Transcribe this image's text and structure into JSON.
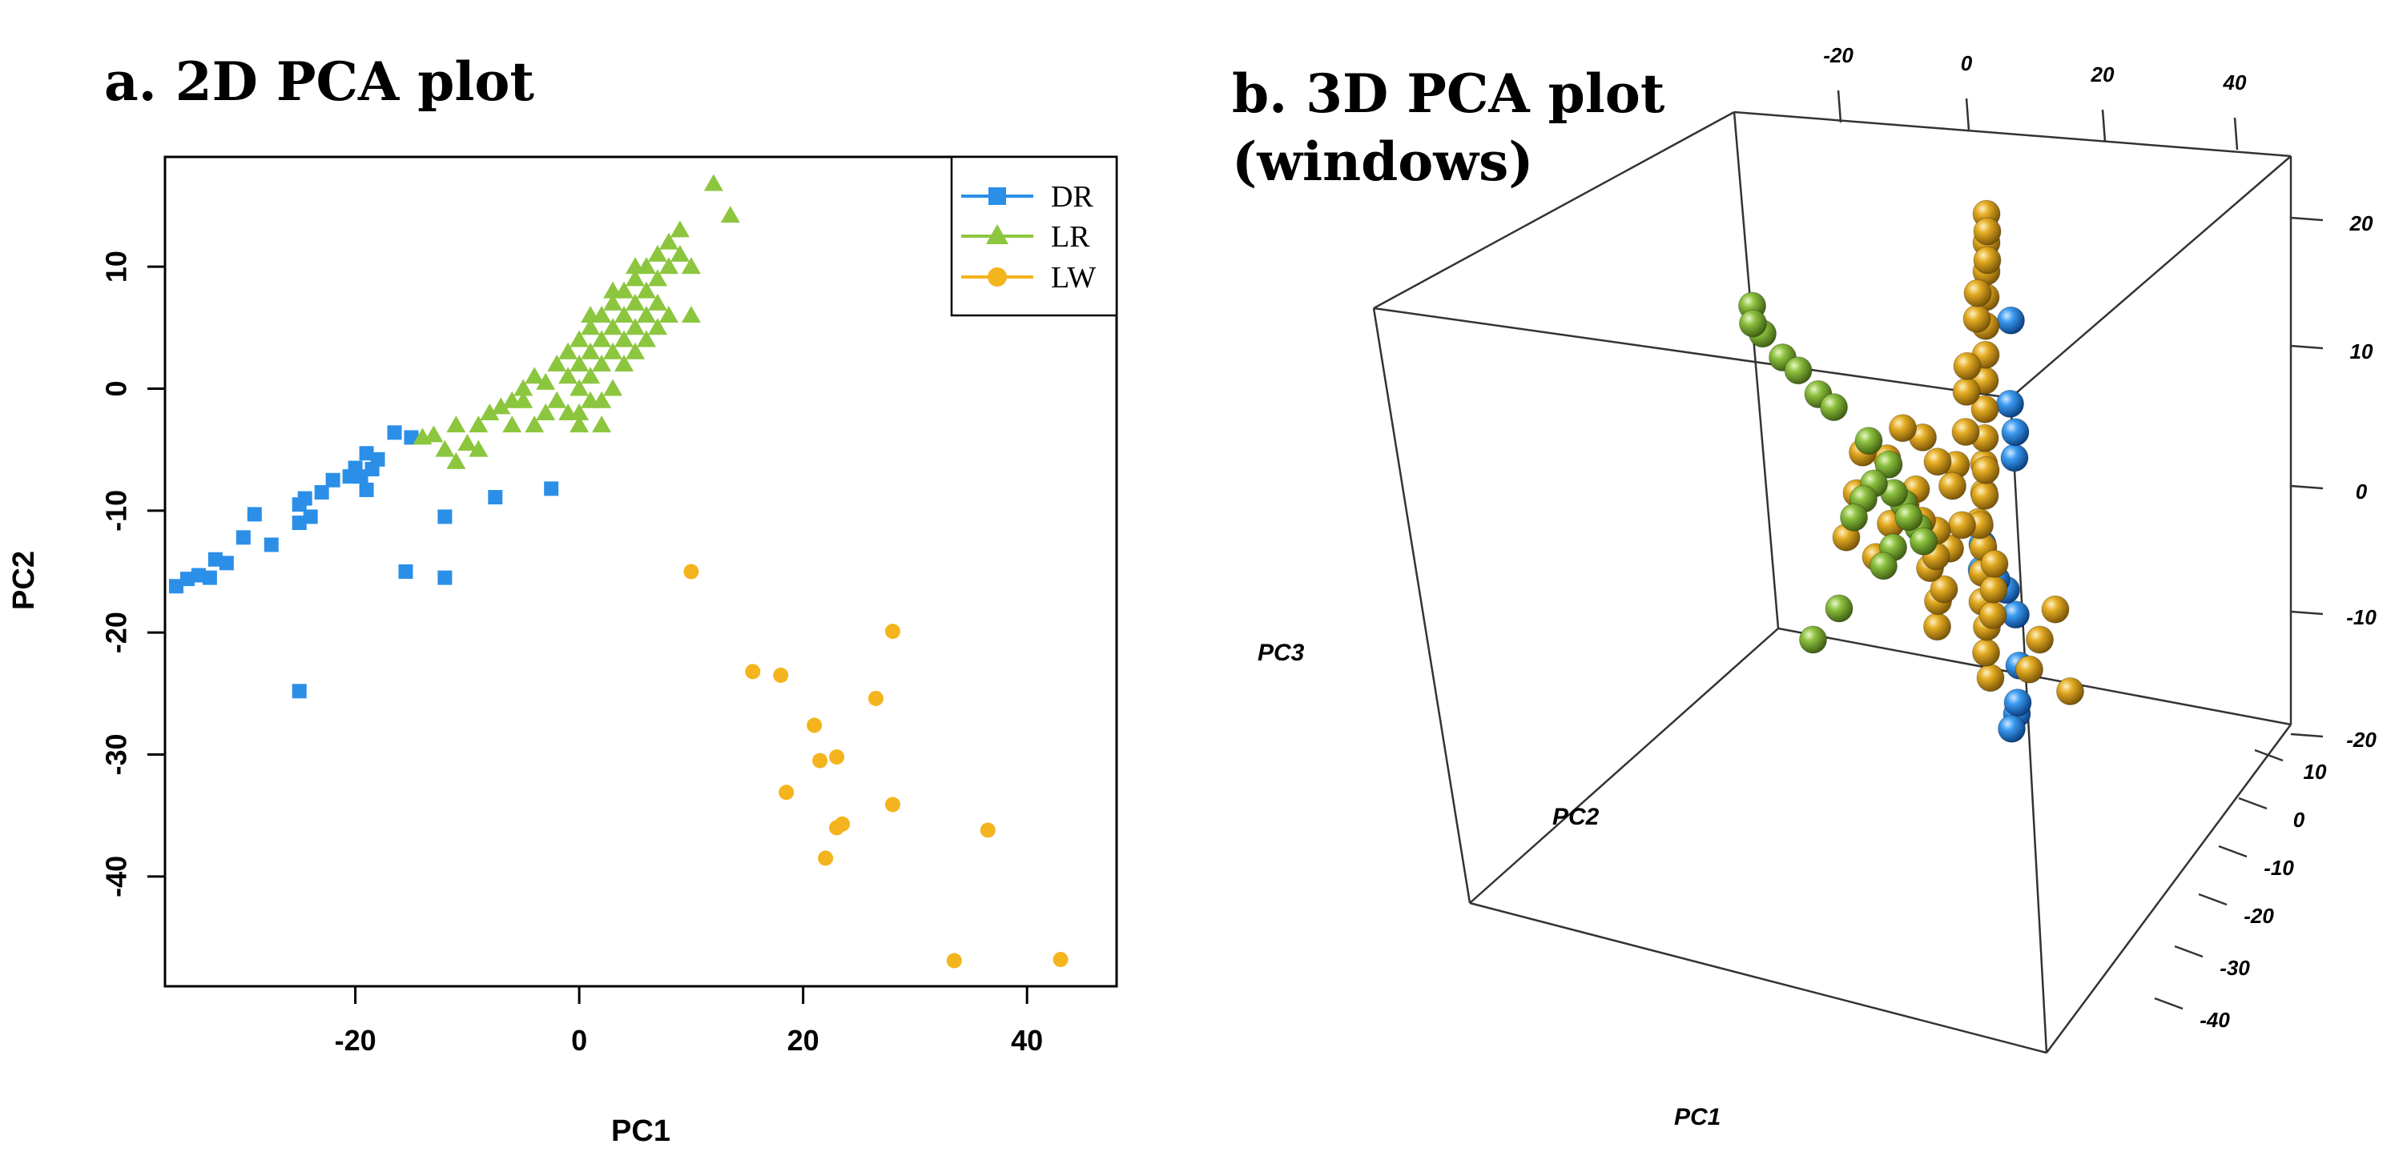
{
  "panel_a": {
    "title": "a. 2D PCA plot"
  },
  "panel_b": {
    "title_line1": "b. 3D PCA plot",
    "title_line2": "(windows)"
  },
  "colors": {
    "DR": "#2b8fe8",
    "LR": "#8cc63f",
    "LW": "#f4b41e",
    "DR_3d": "#2378c8",
    "LR_3d": "#7fb03a",
    "LW_3d": "#dba318"
  },
  "chart_data": [
    {
      "type": "scatter",
      "title": "a. 2D PCA plot",
      "xlabel": "PC1",
      "ylabel": "PC2",
      "xlim": [
        -37,
        48
      ],
      "ylim": [
        -49,
        19
      ],
      "xticks": [
        "-20",
        "0",
        "20",
        "40"
      ],
      "xtick_values": [
        -20,
        0,
        20,
        40
      ],
      "yticks": [
        "10",
        "0",
        "-10",
        "-20",
        "-30",
        "-40"
      ],
      "ytick_values": [
        10,
        0,
        -10,
        -20,
        -30,
        -40
      ],
      "legend": [
        "DR",
        "LR",
        "LW"
      ],
      "legend_position": "top-right",
      "series": [
        {
          "name": "DR",
          "marker": "square",
          "points": [
            [
              -36,
              -16.2
            ],
            [
              -35,
              -15.6
            ],
            [
              -34,
              -15.3
            ],
            [
              -33,
              -15.5
            ],
            [
              -32.5,
              -14
            ],
            [
              -31.5,
              -14.3
            ],
            [
              -30,
              -12.2
            ],
            [
              -29,
              -10.3
            ],
            [
              -27.5,
              -12.8
            ],
            [
              -25,
              -9.5
            ],
            [
              -24.5,
              -9
            ],
            [
              -25,
              -11
            ],
            [
              -24,
              -10.5
            ],
            [
              -23,
              -8.5
            ],
            [
              -22,
              -7.5
            ],
            [
              -20.5,
              -7.2
            ],
            [
              -20,
              -6.5
            ],
            [
              -19.5,
              -7.2
            ],
            [
              -19,
              -8.3
            ],
            [
              -19,
              -5.3
            ],
            [
              -18.5,
              -6.6
            ],
            [
              -18,
              -5.8
            ],
            [
              -16.5,
              -3.6
            ],
            [
              -15,
              -4
            ],
            [
              -12,
              -10.5
            ],
            [
              -15.5,
              -15
            ],
            [
              -12,
              -15.5
            ],
            [
              -7.5,
              -8.9
            ],
            [
              -2.5,
              -8.2
            ],
            [
              -25,
              -24.8
            ]
          ]
        },
        {
          "name": "LR",
          "marker": "triangle",
          "points": [
            [
              -14,
              -4
            ],
            [
              -13,
              -3.8
            ],
            [
              -12,
              -5
            ],
            [
              -11,
              -6
            ],
            [
              -10,
              -4.5
            ],
            [
              -9,
              -3
            ],
            [
              -8,
              -2
            ],
            [
              -7,
              -1.5
            ],
            [
              -6,
              -1
            ],
            [
              -5,
              0
            ],
            [
              -4,
              1
            ],
            [
              -3,
              0.5
            ],
            [
              -2,
              2
            ],
            [
              -1,
              3
            ],
            [
              -1,
              1
            ],
            [
              0,
              4
            ],
            [
              0,
              2
            ],
            [
              0,
              0
            ],
            [
              1,
              3
            ],
            [
              1,
              5
            ],
            [
              1,
              1
            ],
            [
              2,
              6
            ],
            [
              2,
              4
            ],
            [
              2,
              2
            ],
            [
              3,
              5
            ],
            [
              3,
              7
            ],
            [
              3,
              3
            ],
            [
              4,
              6
            ],
            [
              4,
              8
            ],
            [
              5,
              7
            ],
            [
              5,
              9
            ],
            [
              5,
              5
            ],
            [
              6,
              8
            ],
            [
              6,
              10
            ],
            [
              7,
              9
            ],
            [
              7,
              7
            ],
            [
              8,
              10
            ],
            [
              8,
              12
            ],
            [
              9,
              11
            ],
            [
              9,
              13
            ],
            [
              10,
              10
            ],
            [
              12,
              16.8
            ],
            [
              13.5,
              14.2
            ],
            [
              0,
              -2
            ],
            [
              -2,
              -1
            ],
            [
              1,
              -1
            ],
            [
              3,
              0
            ],
            [
              5,
              3
            ],
            [
              7,
              5
            ],
            [
              10,
              6
            ],
            [
              2,
              -3
            ],
            [
              -4,
              -3
            ],
            [
              -6,
              -3
            ],
            [
              -9,
              -5
            ],
            [
              -11,
              -3
            ],
            [
              4,
              2
            ],
            [
              6,
              4
            ],
            [
              8,
              6
            ],
            [
              0,
              -3
            ],
            [
              -1,
              -2
            ],
            [
              2,
              -1
            ],
            [
              -3,
              -2
            ],
            [
              4,
              4
            ],
            [
              6,
              6
            ],
            [
              -5,
              -1
            ],
            [
              1,
              6
            ],
            [
              3,
              8
            ],
            [
              5,
              10
            ],
            [
              7,
              11
            ]
          ]
        },
        {
          "name": "LW",
          "marker": "circle",
          "points": [
            [
              10,
              -15
            ],
            [
              15.5,
              -23.2
            ],
            [
              18,
              -23.5
            ],
            [
              28,
              -19.9
            ],
            [
              21,
              -27.6
            ],
            [
              26.5,
              -25.4
            ],
            [
              21.5,
              -30.5
            ],
            [
              23,
              -30.2
            ],
            [
              18.5,
              -33.1
            ],
            [
              23.5,
              -35.7
            ],
            [
              23,
              -36
            ],
            [
              28,
              -34.1
            ],
            [
              22,
              -38.5
            ],
            [
              36.5,
              -36.2
            ],
            [
              33.5,
              -46.9
            ],
            [
              43,
              -46.8
            ]
          ]
        }
      ]
    },
    {
      "type": "scatter",
      "title": "b. 3D PCA plot (windows)",
      "xlabel": "PC1",
      "ylabel": "PC2",
      "zlabel": "PC3",
      "top_ticks": [
        "-20",
        "0",
        "20",
        "40"
      ],
      "right_ticks": [
        "20",
        "10",
        "0",
        "-10",
        "-20"
      ],
      "bottom_ticks": [
        "10",
        "0",
        "-10",
        "-20",
        "-30",
        "-40"
      ],
      "series": [
        {
          "name": "DR",
          "points": [
            [
              2,
              -5,
              12
            ],
            [
              1,
              -6,
              6
            ],
            [
              2,
              -6,
              4
            ],
            [
              1,
              -7,
              2
            ],
            [
              -6,
              -8,
              -4
            ],
            [
              -7,
              -9,
              -6
            ],
            [
              -5,
              -10,
              -7
            ],
            [
              -4,
              -11,
              -8
            ],
            [
              -3,
              -12,
              -10
            ],
            [
              -4,
              -14,
              -14
            ],
            [
              -6,
              -16,
              -17
            ],
            [
              -7,
              -17,
              -18
            ],
            [
              -8,
              -17,
              -19
            ]
          ]
        },
        {
          "name": "LR",
          "points": [
            [
              -35,
              10,
              18
            ],
            [
              -34,
              11,
              17
            ],
            [
              -33,
              10,
              16
            ],
            [
              -30,
              9,
              14
            ],
            [
              -27,
              9,
              13
            ],
            [
              -24,
              8,
              11
            ],
            [
              -21,
              8,
              10
            ],
            [
              -16,
              6,
              7
            ],
            [
              -13,
              5,
              5
            ],
            [
              -12,
              5,
              3
            ],
            [
              -11,
              4,
              2
            ],
            [
              -10,
              4,
              1
            ],
            [
              -9,
              3,
              0
            ],
            [
              -8,
              3,
              -1
            ],
            [
              -15,
              6,
              4
            ],
            [
              -17,
              6,
              3
            ],
            [
              -18,
              7,
              2
            ],
            [
              -13,
              4,
              -1
            ],
            [
              -14,
              5,
              -2
            ],
            [
              -20,
              8,
              -4
            ],
            [
              -25,
              8,
              -6
            ]
          ]
        },
        {
          "name": "LW",
          "points": [
            [
              -1,
              -3,
              20
            ],
            [
              -1,
              -3,
              18
            ],
            [
              -1,
              -3,
              16
            ],
            [
              -2,
              -4,
              14
            ],
            [
              -2,
              -4,
              12
            ],
            [
              -2,
              -4,
              10
            ],
            [
              -3,
              -5,
              8
            ],
            [
              -3,
              -5,
              6
            ],
            [
              -3,
              -5,
              4
            ],
            [
              -4,
              -6,
              2
            ],
            [
              -4,
              -6,
              0
            ],
            [
              -5,
              -6,
              -2
            ],
            [
              -5,
              -7,
              -4
            ],
            [
              -6,
              -8,
              -6
            ],
            [
              -6,
              -8,
              -8
            ],
            [
              -6,
              -9,
              -10
            ],
            [
              -7,
              -10,
              -12
            ],
            [
              -7,
              -11,
              -14
            ],
            [
              -12,
              0,
              2
            ],
            [
              -14,
              0,
              1
            ],
            [
              -16,
              1,
              0
            ],
            [
              -18,
              2,
              -2
            ],
            [
              -10,
              1,
              0
            ],
            [
              -8,
              0,
              -1
            ],
            [
              -9,
              -1,
              -3
            ],
            [
              -11,
              -2,
              -4
            ],
            [
              -4,
              -5,
              -2
            ],
            [
              -3,
              -5,
              0
            ],
            [
              -2,
              -4,
              2
            ],
            [
              8,
              -8,
              -9
            ],
            [
              5,
              -8,
              -11
            ],
            [
              3,
              -8,
              -13
            ],
            [
              10,
              -9,
              -15
            ],
            [
              -22,
              4,
              0
            ],
            [
              -20,
              4,
              3
            ],
            [
              -18,
              5,
              6
            ],
            [
              -15,
              3,
              5
            ],
            [
              -12,
              3,
              7
            ],
            [
              -9,
              2,
              6
            ],
            [
              -7,
              1,
              4
            ],
            [
              -5,
              0,
              2
            ],
            [
              -4,
              -1,
              -1
            ],
            [
              -8,
              -3,
              -3
            ],
            [
              -10,
              -4,
              -6
            ],
            [
              -12,
              -5,
              -7
            ],
            [
              -13,
              -6,
              -9
            ],
            [
              -6,
              -2,
              3
            ],
            [
              -5,
              -3,
              5
            ],
            [
              -4,
              -2,
              8
            ],
            [
              -3,
              -1,
              10
            ],
            [
              -2,
              -2,
              13
            ],
            [
              -1,
              -1,
              15
            ],
            [
              0,
              -2,
              17
            ],
            [
              0,
              -2,
              19
            ],
            [
              -2,
              -6,
              -5
            ],
            [
              -3,
              -7,
              -7
            ],
            [
              -4,
              -8,
              -9
            ]
          ]
        }
      ]
    }
  ]
}
